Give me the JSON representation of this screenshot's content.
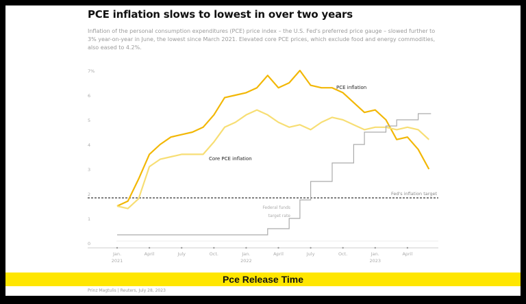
{
  "chart_data": {
    "type": "line",
    "title": "PCE inflation slows to lowest in over two years",
    "subtitle": "Inflation of the personal consumption expenditures (PCE) price index – the U.S. Fed's preferred price gauge – slowed further to 3% year-on-year in June, the lowest since March 2021. Elevated core PCE prices, which exclude food and energy commodities, also eased to 4.2%.",
    "x": [
      "2021-01",
      "2021-02",
      "2021-03",
      "2021-04",
      "2021-05",
      "2021-06",
      "2021-07",
      "2021-08",
      "2021-09",
      "2021-10",
      "2021-11",
      "2021-12",
      "2022-01",
      "2022-02",
      "2022-03",
      "2022-04",
      "2022-05",
      "2022-06",
      "2022-07",
      "2022-08",
      "2022-09",
      "2022-10",
      "2022-11",
      "2022-12",
      "2023-01",
      "2023-02",
      "2023-03",
      "2023-04",
      "2023-05",
      "2023-06"
    ],
    "x_tick_labels": [
      [
        "Jan.",
        "2021"
      ],
      [
        "April",
        ""
      ],
      [
        "July",
        ""
      ],
      [
        "Oct.",
        ""
      ],
      [
        "Jan.",
        "2022"
      ],
      [
        "April",
        ""
      ],
      [
        "July",
        ""
      ],
      [
        "Oct.",
        ""
      ],
      [
        "Jan.",
        "2023"
      ],
      [
        "April",
        ""
      ]
    ],
    "y_tick_labels": [
      "0",
      "1",
      "2",
      "3",
      "4",
      "5",
      "6",
      "7%"
    ],
    "ylim": [
      0,
      7
    ],
    "series": [
      {
        "name": "PCE inflation",
        "color": "#f2b705",
        "values": [
          1.5,
          1.7,
          2.6,
          3.6,
          4.0,
          4.3,
          4.4,
          4.5,
          4.7,
          5.2,
          5.9,
          6.0,
          6.1,
          6.3,
          6.8,
          6.3,
          6.5,
          7.0,
          6.4,
          6.3,
          6.3,
          6.1,
          5.7,
          5.3,
          5.4,
          5.0,
          4.2,
          4.3,
          3.8,
          3.0
        ]
      },
      {
        "name": "Core PCE inflation",
        "color": "#f7de74",
        "values": [
          1.5,
          1.4,
          1.8,
          3.1,
          3.4,
          3.5,
          3.6,
          3.6,
          3.6,
          4.1,
          4.7,
          4.9,
          5.2,
          5.4,
          5.2,
          4.9,
          4.7,
          4.8,
          4.6,
          4.9,
          5.1,
          5.0,
          4.8,
          4.6,
          4.7,
          4.7,
          4.6,
          4.7,
          4.6,
          4.2
        ]
      },
      {
        "name": "Federal funds target rate",
        "color": "#aaaaaa",
        "values": [
          0.25,
          0.25,
          0.25,
          0.25,
          0.25,
          0.25,
          0.25,
          0.25,
          0.25,
          0.25,
          0.25,
          0.25,
          0.25,
          0.25,
          0.5,
          0.5,
          1.0,
          1.75,
          2.5,
          2.5,
          3.25,
          3.25,
          4.0,
          4.5,
          4.5,
          4.75,
          5.0,
          5.0,
          5.25,
          5.25
        ]
      }
    ],
    "reference_line": {
      "label": "Fed's inflation target",
      "value": 2
    }
  },
  "banner": "Pce Release Time",
  "credit": "Prinz Magtulis | Reuters, July 28, 2023"
}
